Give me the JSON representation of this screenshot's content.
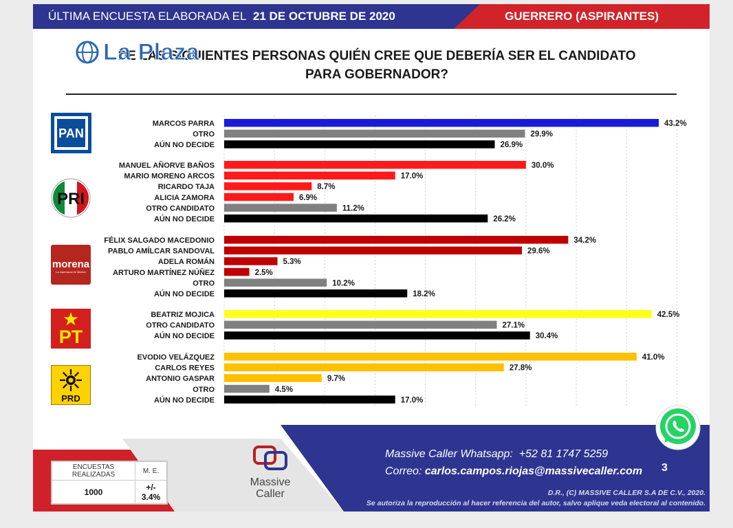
{
  "header": {
    "left_prefix": "ÚLTIMA ENCUESTA ELABORADA EL",
    "date": "21 DE OCTUBRE DE 2020",
    "right": "GUERRERO (ASPIRANTES)"
  },
  "watermark": {
    "logo_text": "La Plaza"
  },
  "question": "DE LAS SIGUIENTES PERSONAS QUIÉN CREE QUE DEBERÍA SER EL CANDIDATO PARA GOBERNADOR?",
  "parties": [
    {
      "name": "PAN",
      "logo_text": "PAN"
    },
    {
      "name": "PRI",
      "logo_text": "PRI"
    },
    {
      "name": "morena",
      "logo_text": "morena",
      "logo_subtext": "La esperanza de México"
    },
    {
      "name": "PT",
      "logo_text": "PT"
    },
    {
      "name": "PRD",
      "logo_text": "PRD"
    }
  ],
  "chart_data": {
    "type": "bar",
    "orientation": "horizontal",
    "value_suffix": "%",
    "xlim": [
      0,
      47
    ],
    "grid": true,
    "groups": [
      {
        "party": "PAN",
        "bars": [
          {
            "label": "MARCOS PARRA",
            "value": 43.2,
            "color": "#1a1adb"
          },
          {
            "label": "OTRO",
            "value": 29.9,
            "color": "#808080"
          },
          {
            "label": "AÚN NO DECIDE",
            "value": 26.9,
            "color": "#000000"
          }
        ]
      },
      {
        "party": "PRI",
        "bars": [
          {
            "label": "MANUEL AÑORVE BAÑOS",
            "value": 30.0,
            "color": "#ff1a1a"
          },
          {
            "label": "MARIO MORENO ARCOS",
            "value": 17.0,
            "color": "#ff1a1a"
          },
          {
            "label": "RICARDO TAJA",
            "value": 8.7,
            "color": "#ff1a1a"
          },
          {
            "label": "ALICIA ZAMORA",
            "value": 6.9,
            "color": "#ff1a1a"
          },
          {
            "label": "OTRO CANDIDATO",
            "value": 11.2,
            "color": "#808080"
          },
          {
            "label": "AÚN NO DECIDE",
            "value": 26.2,
            "color": "#000000"
          }
        ]
      },
      {
        "party": "morena",
        "bars": [
          {
            "label": "FÉLIX SALGADO MACEDONIO",
            "value": 34.2,
            "color": "#c00000"
          },
          {
            "label": "PABLO AMÍLCAR SANDOVAL",
            "value": 29.6,
            "color": "#c00000"
          },
          {
            "label": "ADELA ROMÁN",
            "value": 5.3,
            "color": "#c00000"
          },
          {
            "label": "ARTURO MARTÍNEZ NÚÑEZ",
            "value": 2.5,
            "color": "#c00000"
          },
          {
            "label": "OTRO",
            "value": 10.2,
            "color": "#808080"
          },
          {
            "label": "AÚN NO DECIDE",
            "value": 18.2,
            "color": "#000000"
          }
        ]
      },
      {
        "party": "PT",
        "bars": [
          {
            "label": "BEATRIZ MOJICA",
            "value": 42.5,
            "color": "#ffff1a"
          },
          {
            "label": "OTRO CANDIDATO",
            "value": 27.1,
            "color": "#808080"
          },
          {
            "label": "AÚN NO DECIDE",
            "value": 30.4,
            "color": "#000000"
          }
        ]
      },
      {
        "party": "PRD",
        "bars": [
          {
            "label": "EVODIO VELÁZQUEZ",
            "value": 41.0,
            "color": "#ffc000"
          },
          {
            "label": "CARLOS REYES",
            "value": 27.8,
            "color": "#ffc000"
          },
          {
            "label": "ANTONIO GASPAR",
            "value": 9.7,
            "color": "#ffc000"
          },
          {
            "label": "OTRO",
            "value": 4.5,
            "color": "#808080"
          },
          {
            "label": "AÚN NO DECIDE",
            "value": 17.0,
            "color": "#000000"
          }
        ]
      }
    ]
  },
  "footer": {
    "surveys_header": "ENCUESTAS REALIZADAS",
    "me_header": "M. E.",
    "surveys_value": "1000",
    "me_value": "+/- 3.4%",
    "company_line1": "Massive",
    "company_line2": "Caller",
    "whatsapp_label": "Massive Caller Whatsapp:",
    "whatsapp_number": "+52 81 1747 5259",
    "email_label": "Correo:",
    "email": "carlos.campos.riojas@massivecaller.com",
    "page_number": "3",
    "legal_line1": "D.R., (C) MASSIVE CALLER S.A DE C.V., 2020.",
    "legal_line2": "Se autoriza la reproducción al hacer referencia del autor, salvo aplique veda electoral al contenido."
  },
  "colors": {
    "navy": "#2d3590",
    "red": "#d2232a",
    "pan": "#0a4d9c",
    "morena": "#b5261e",
    "pt": "#d41f1f",
    "prd": "#ffd200",
    "whatsapp": "#25d366"
  }
}
